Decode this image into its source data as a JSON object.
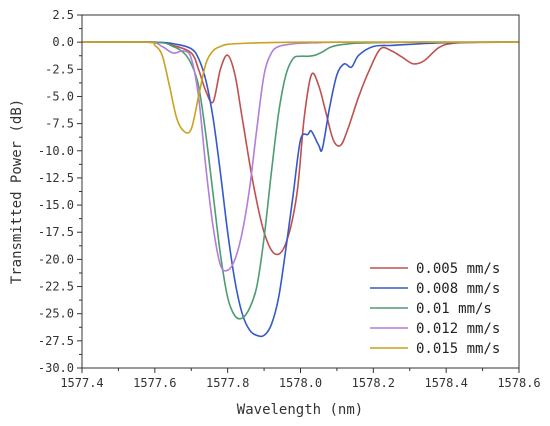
{
  "chart_data": {
    "type": "line",
    "title": "",
    "xlabel": "Wavelength (nm)",
    "ylabel": "Transmitted Power (dB)",
    "xlim": [
      1577.4,
      1578.6
    ],
    "ylim": [
      -30.0,
      2.5
    ],
    "xticks": [
      1577.4,
      1577.6,
      1577.8,
      1578.0,
      1578.2,
      1578.4,
      1578.6
    ],
    "xtick_labels": [
      "1577.4",
      "1577.6",
      "1577.8",
      "1578.0",
      "1578.2",
      "1578.4",
      "1578.6"
    ],
    "yticks": [
      2.5,
      0.0,
      -2.5,
      -5.0,
      -7.5,
      -10.0,
      -12.5,
      -15.0,
      -17.5,
      -20.0,
      -22.5,
      -25.0,
      -27.5,
      -30.0
    ],
    "ytick_labels": [
      "2.5",
      "0.0",
      "-2.5",
      "-5.0",
      "-7.5",
      "-10.0",
      "-12.5",
      "-15.0",
      "-17.5",
      "-20.0",
      "-22.5",
      "-25.0",
      "-27.5",
      "-30.0"
    ],
    "grid": false,
    "legend_position": "bottom-right",
    "series": [
      {
        "name": "0.005 mm/s",
        "color": "#c0504d",
        "x": [
          1577.4,
          1577.6,
          1577.65,
          1577.7,
          1577.72,
          1577.74,
          1577.76,
          1577.78,
          1577.8,
          1577.82,
          1577.84,
          1577.87,
          1577.9,
          1577.93,
          1577.96,
          1577.99,
          1578.01,
          1578.03,
          1578.05,
          1578.07,
          1578.09,
          1578.11,
          1578.13,
          1578.16,
          1578.19,
          1578.22,
          1578.25,
          1578.28,
          1578.31,
          1578.34,
          1578.38,
          1578.42,
          1578.5,
          1578.6
        ],
        "y": [
          0.0,
          0.0,
          -0.3,
          -1.0,
          -2.5,
          -4.5,
          -5.5,
          -2.5,
          -1.2,
          -3.0,
          -7.0,
          -13.0,
          -17.5,
          -19.5,
          -18.5,
          -14.0,
          -7.0,
          -3.0,
          -4.0,
          -6.5,
          -9.0,
          -9.5,
          -8.0,
          -5.0,
          -2.5,
          -0.6,
          -0.8,
          -1.4,
          -2.0,
          -1.7,
          -0.5,
          -0.1,
          0.0,
          0.0
        ]
      },
      {
        "name": "0.008 mm/s",
        "color": "#3559c8",
        "x": [
          1577.4,
          1577.6,
          1577.66,
          1577.7,
          1577.72,
          1577.74,
          1577.76,
          1577.78,
          1577.8,
          1577.82,
          1577.84,
          1577.86,
          1577.88,
          1577.9,
          1577.92,
          1577.94,
          1577.96,
          1577.98,
          1578.0,
          1578.02,
          1578.03,
          1578.05,
          1578.06,
          1578.08,
          1578.1,
          1578.12,
          1578.14,
          1578.16,
          1578.2,
          1578.25,
          1578.3,
          1578.4,
          1578.6
        ],
        "y": [
          0.0,
          0.0,
          -0.2,
          -0.6,
          -1.5,
          -3.5,
          -7.0,
          -12.0,
          -17.5,
          -22.0,
          -25.0,
          -26.5,
          -27.0,
          -27.0,
          -26.0,
          -23.5,
          -19.0,
          -14.0,
          -9.0,
          -8.5,
          -8.2,
          -9.5,
          -9.8,
          -6.0,
          -3.0,
          -2.0,
          -2.3,
          -1.2,
          -0.4,
          -0.3,
          -0.2,
          -0.05,
          0.0
        ]
      },
      {
        "name": "0.01 mm/s",
        "color": "#4e9c71",
        "x": [
          1577.4,
          1577.6,
          1577.65,
          1577.68,
          1577.7,
          1577.72,
          1577.74,
          1577.76,
          1577.78,
          1577.8,
          1577.82,
          1577.84,
          1577.86,
          1577.88,
          1577.9,
          1577.92,
          1577.94,
          1577.96,
          1577.98,
          1578.0,
          1578.02,
          1578.04,
          1578.06,
          1578.08,
          1578.1,
          1578.12,
          1578.15,
          1578.2,
          1578.3,
          1578.4,
          1578.6
        ],
        "y": [
          0.0,
          0.0,
          -0.4,
          -1.0,
          -2.0,
          -4.0,
          -8.5,
          -14.0,
          -19.5,
          -23.5,
          -25.2,
          -25.4,
          -24.5,
          -22.5,
          -18.0,
          -12.0,
          -6.5,
          -3.0,
          -1.5,
          -1.3,
          -1.3,
          -1.2,
          -0.9,
          -0.5,
          -0.3,
          -0.2,
          -0.1,
          -0.05,
          0.0,
          0.0,
          0.0
        ]
      },
      {
        "name": "0.012 mm/s",
        "color": "#b07fd8",
        "x": [
          1577.4,
          1577.58,
          1577.62,
          1577.65,
          1577.68,
          1577.7,
          1577.72,
          1577.74,
          1577.76,
          1577.78,
          1577.8,
          1577.82,
          1577.84,
          1577.86,
          1577.88,
          1577.9,
          1577.92,
          1577.94,
          1577.97,
          1578.0,
          1578.05,
          1578.1,
          1578.2,
          1578.4,
          1578.6
        ],
        "y": [
          0.0,
          0.0,
          -0.4,
          -1.0,
          -0.8,
          -1.5,
          -5.0,
          -11.5,
          -17.0,
          -20.5,
          -21.0,
          -20.0,
          -17.5,
          -13.5,
          -8.0,
          -3.0,
          -1.0,
          -0.4,
          -0.2,
          -0.1,
          -0.05,
          0.0,
          0.0,
          0.0,
          0.0
        ]
      },
      {
        "name": "0.015 mm/s",
        "color": "#c9a21f",
        "x": [
          1577.4,
          1577.58,
          1577.6,
          1577.62,
          1577.64,
          1577.66,
          1577.68,
          1577.7,
          1577.72,
          1577.74,
          1577.76,
          1577.78,
          1577.8,
          1577.85,
          1577.9,
          1578.0,
          1578.2,
          1578.4,
          1578.6
        ],
        "y": [
          0.0,
          0.0,
          -0.3,
          -1.2,
          -4.0,
          -7.0,
          -8.2,
          -8.0,
          -5.0,
          -2.0,
          -0.8,
          -0.4,
          -0.2,
          -0.1,
          -0.05,
          0.0,
          0.0,
          0.0,
          0.0
        ]
      }
    ]
  }
}
